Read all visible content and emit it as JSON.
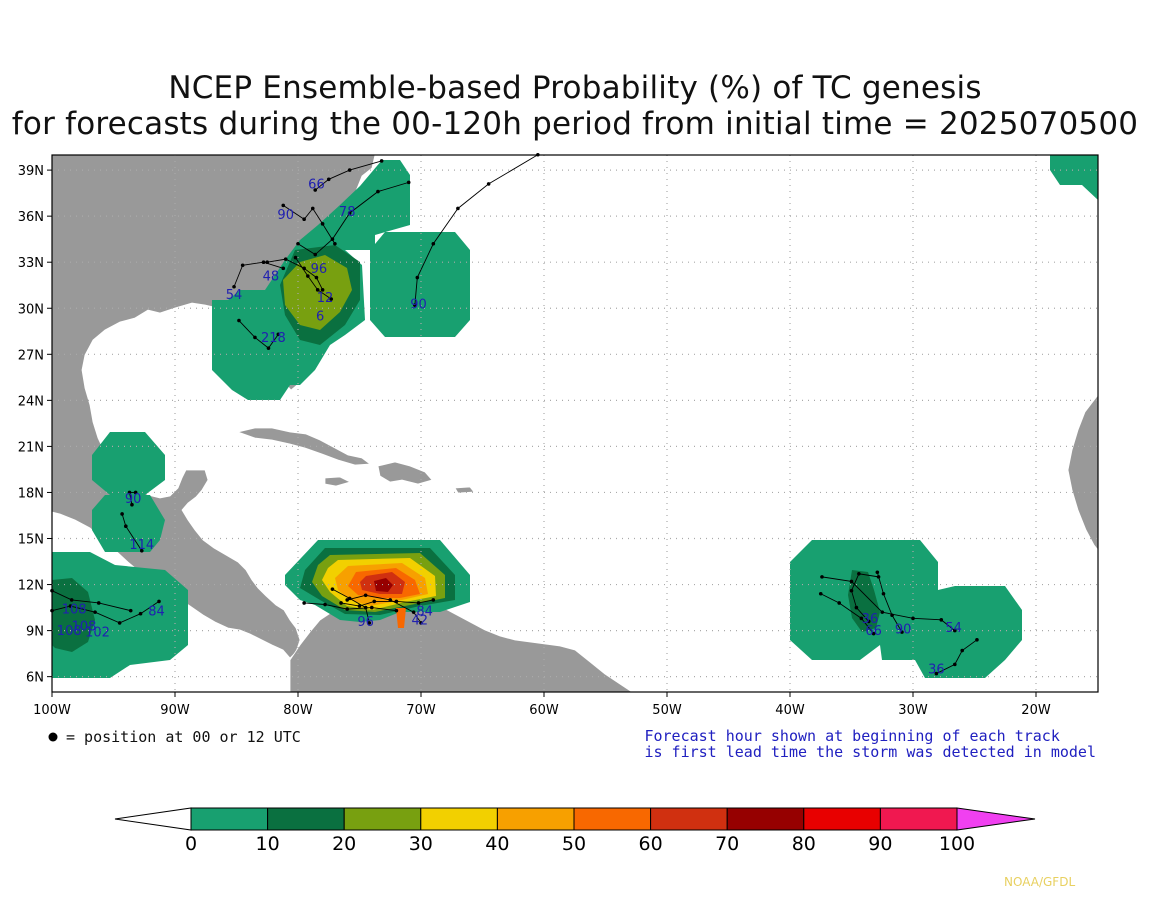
{
  "title": {
    "line1": "NCEP Ensemble-based Probability (%) of TC genesis",
    "line2": "for forecasts during the 00-120h period from initial time = 2025070500"
  },
  "axes": {
    "lon_ticks": [
      "100W",
      "90W",
      "80W",
      "70W",
      "60W",
      "50W",
      "40W",
      "30W",
      "20W"
    ],
    "lat_ticks": [
      "39N",
      "36N",
      "33N",
      "30N",
      "27N",
      "24N",
      "21N",
      "18N",
      "15N",
      "12N",
      "9N",
      "6N"
    ]
  },
  "legend": {
    "dot_label": "= position at 00 or 12 UTC",
    "note_line1": "Forecast hour shown at beginning of each track",
    "note_line2": "is first lead time the storm was detected in model"
  },
  "colorbar": {
    "labels": [
      "0",
      "10",
      "20",
      "30",
      "40",
      "50",
      "60",
      "70",
      "80",
      "90",
      "100"
    ],
    "colors": [
      "#18a070",
      "#0a7040",
      "#78a010",
      "#f2d000",
      "#f7a000",
      "#f86800",
      "#d03010",
      "#960000",
      "#e80000",
      "#f01850"
    ],
    "under_color": "#ffffff",
    "over_color": "#f040f0"
  },
  "map_colors": {
    "land": "#999999",
    "ocean": "#ffffff",
    "border": "#ffffff",
    "track": "#000000",
    "hour_label": "#2020b0"
  },
  "hour_labels": [
    {
      "text": "66",
      "lon": -78.5,
      "lat": 37.8
    },
    {
      "text": "90",
      "lon": -81.0,
      "lat": 35.8
    },
    {
      "text": "78",
      "lon": -76.0,
      "lat": 36.0
    },
    {
      "text": "48",
      "lon": -82.2,
      "lat": 31.8
    },
    {
      "text": "96",
      "lon": -78.3,
      "lat": 32.3
    },
    {
      "text": "54",
      "lon": -85.2,
      "lat": 30.6
    },
    {
      "text": "12",
      "lon": -77.8,
      "lat": 30.4
    },
    {
      "text": "6",
      "lon": -78.2,
      "lat": 29.2
    },
    {
      "text": "218",
      "lon": -82.0,
      "lat": 27.8
    },
    {
      "text": "90",
      "lon": -70.2,
      "lat": 30.0
    },
    {
      "text": "90",
      "lon": -93.4,
      "lat": 17.3
    },
    {
      "text": "114",
      "lon": -92.7,
      "lat": 14.3
    },
    {
      "text": "108",
      "lon": -98.2,
      "lat": 10.1
    },
    {
      "text": "108",
      "lon": -97.4,
      "lat": 9.0
    },
    {
      "text": "102",
      "lon": -96.3,
      "lat": 8.6
    },
    {
      "text": "108",
      "lon": -98.6,
      "lat": 8.7
    },
    {
      "text": "84",
      "lon": -91.5,
      "lat": 10.0
    },
    {
      "text": "96",
      "lon": -74.5,
      "lat": 9.3
    },
    {
      "text": "42",
      "lon": -70.1,
      "lat": 9.4
    },
    {
      "text": "84",
      "lon": -69.7,
      "lat": 10.0
    },
    {
      "text": "36",
      "lon": -33.5,
      "lat": 9.5
    },
    {
      "text": "66",
      "lon": -33.2,
      "lat": 8.7
    },
    {
      "text": "90",
      "lon": -30.8,
      "lat": 8.8
    },
    {
      "text": "54",
      "lon": -26.7,
      "lat": 8.9
    },
    {
      "text": "36",
      "lon": -28.1,
      "lat": 6.2
    }
  ],
  "credit": "NOAA/GFDL"
}
